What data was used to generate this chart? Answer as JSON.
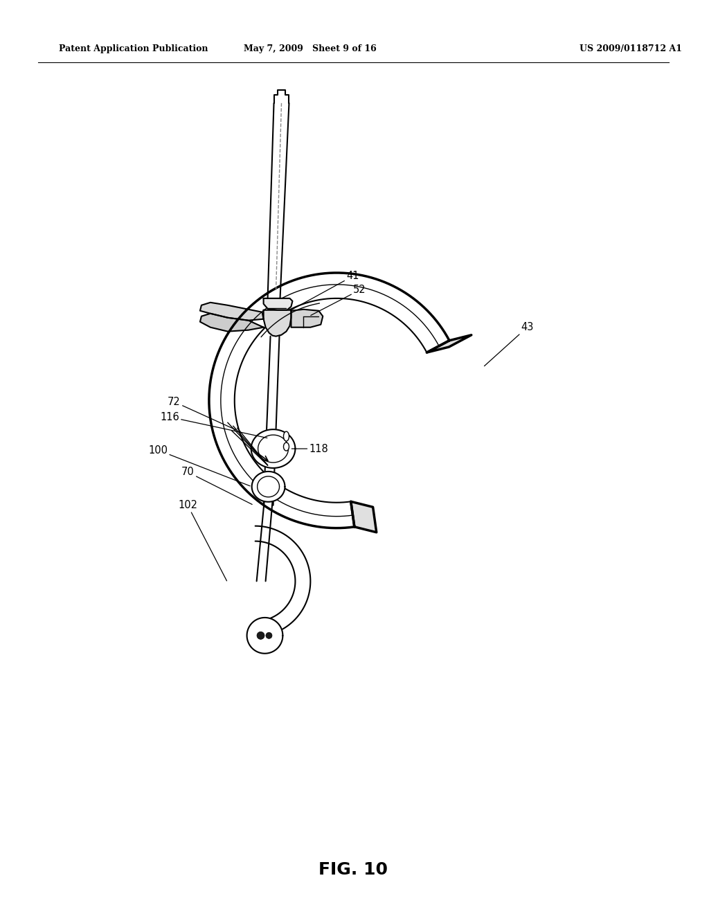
{
  "header_left": "Patent Application Publication",
  "header_mid": "May 7, 2009   Sheet 9 of 16",
  "header_right": "US 2009/0118712 A1",
  "figure_label": "FIG. 10",
  "bg": "#ffffff"
}
